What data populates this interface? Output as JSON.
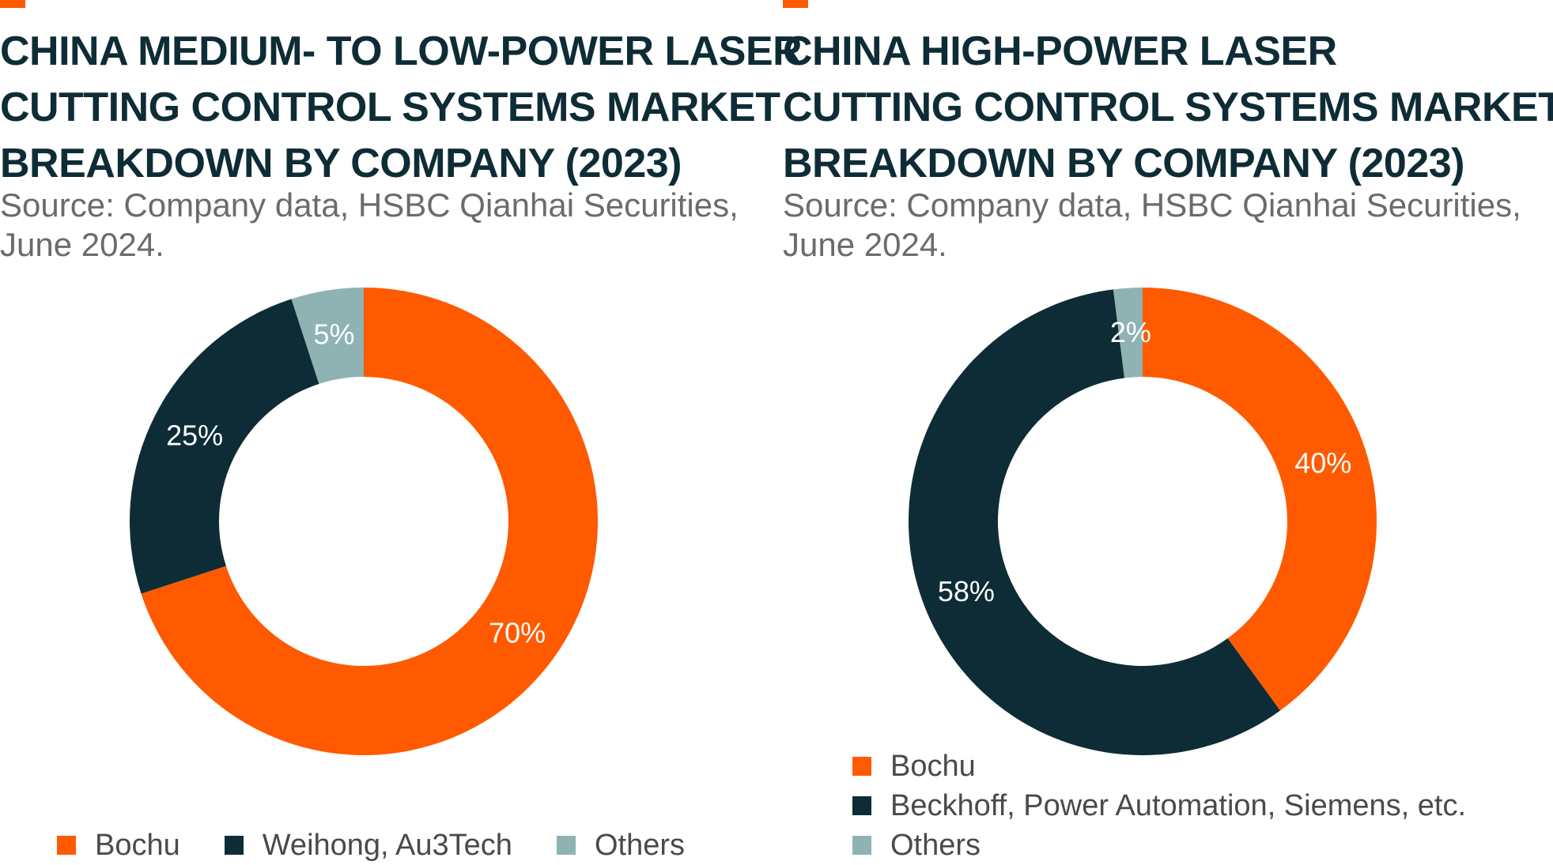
{
  "colors": {
    "accent": "#ff5a00",
    "dark": "#0e2c36",
    "teal": "#8fb3b3",
    "source_text": "#6b6b6b"
  },
  "chart_data": [
    {
      "type": "pie",
      "title_lines": [
        "CHINA MEDIUM- TO LOW-POWER LASER",
        "CUTTING CONTROL SYSTEMS MARKET",
        "BREAKDOWN BY COMPANY (2023)"
      ],
      "subtitle_lines": [
        "Source: Company data, HSBC Qianhai Securities,",
        "June 2024."
      ],
      "slices": [
        {
          "name": "Bochu",
          "value": 70,
          "label": "70%",
          "color": "#ff5a00"
        },
        {
          "name": "Weihong, Au3Tech",
          "value": 25,
          "label": "25%",
          "color": "#0e2c36"
        },
        {
          "name": "Others",
          "value": 5,
          "label": "5%",
          "color": "#8fb3b3"
        }
      ],
      "legend_position": "bottom",
      "donut": true
    },
    {
      "type": "pie",
      "title_lines": [
        "CHINA HIGH-POWER LASER",
        "CUTTING CONTROL SYSTEMS MARKET",
        "BREAKDOWN BY COMPANY (2023)"
      ],
      "subtitle_lines": [
        "Source: Company data, HSBC Qianhai Securities,",
        "June 2024."
      ],
      "slices": [
        {
          "name": "Bochu",
          "value": 40,
          "label": "40%",
          "color": "#ff5a00"
        },
        {
          "name": "Beckhoff, Power Automation, Siemens, etc.",
          "value": 58,
          "label": "58%",
          "color": "#0e2c36"
        },
        {
          "name": "Others",
          "value": 2,
          "label": "2%",
          "color": "#8fb3b3"
        }
      ],
      "legend_position": "bottom",
      "donut": true
    }
  ]
}
